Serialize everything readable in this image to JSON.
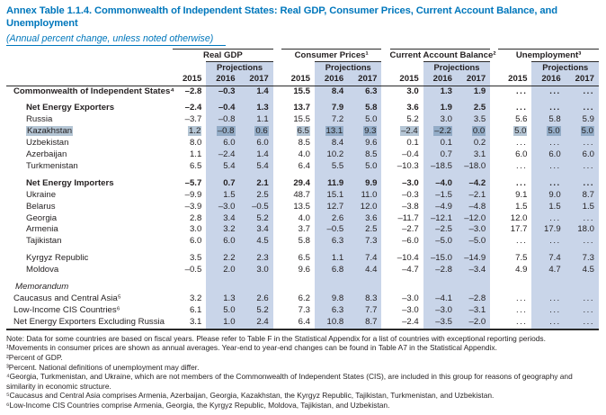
{
  "title": "Annex Table 1.1.4. Commonwealth of Independent States: Real GDP, Consumer Prices, Current Account Balance, and Unemployment",
  "subtitle": "(Annual percent change, unless noted otherwise)",
  "colors": {
    "accent_blue": "#0077bc",
    "projection_band": "#c9d5e9",
    "selection_highlight": "rgba(61,105,145,0.38)",
    "rule": "#2a2a2a"
  },
  "header": {
    "groups": [
      {
        "label": "Real GDP"
      },
      {
        "label": "Consumer Prices¹"
      },
      {
        "label": "Current Account Balance²"
      },
      {
        "label": "Unemployment³"
      }
    ],
    "projections_label": "Projections",
    "years": [
      "2015",
      "2016",
      "2017"
    ]
  },
  "table": {
    "rows": [
      {
        "label": "Commonwealth of Independent States⁴",
        "indent": 0,
        "style": "bold",
        "highlight": false,
        "spacer_before": false,
        "values": [
          "–2.8",
          "–0.3",
          "1.4",
          "15.5",
          "8.4",
          "6.3",
          "3.0",
          "1.3",
          "1.9",
          "...",
          "...",
          "..."
        ]
      },
      {
        "label": "Net Energy Exporters",
        "indent": 1,
        "style": "bold",
        "highlight": false,
        "spacer_before": true,
        "values": [
          "–2.4",
          "–0.4",
          "1.3",
          "13.7",
          "7.9",
          "5.8",
          "3.6",
          "1.9",
          "2.5",
          "...",
          "...",
          "..."
        ]
      },
      {
        "label": "Russia",
        "indent": 1,
        "style": "normal",
        "highlight": false,
        "spacer_before": false,
        "values": [
          "–3.7",
          "–0.8",
          "1.1",
          "15.5",
          "7.2",
          "5.0",
          "5.2",
          "3.0",
          "3.5",
          "5.6",
          "5.8",
          "5.9"
        ]
      },
      {
        "label": "Kazakhstan",
        "indent": 1,
        "style": "normal",
        "highlight": true,
        "spacer_before": false,
        "values": [
          "1.2",
          "–0.8",
          "0.6",
          "6.5",
          "13.1",
          "9.3",
          "–2.4",
          "–2.2",
          "0.0",
          "5.0",
          "5.0",
          "5.0"
        ]
      },
      {
        "label": "Uzbekistan",
        "indent": 1,
        "style": "normal",
        "highlight": false,
        "spacer_before": false,
        "values": [
          "8.0",
          "6.0",
          "6.0",
          "8.5",
          "8.4",
          "9.6",
          "0.1",
          "0.1",
          "0.2",
          "...",
          "...",
          "..."
        ]
      },
      {
        "label": "Azerbaijan",
        "indent": 1,
        "style": "normal",
        "highlight": false,
        "spacer_before": false,
        "values": [
          "1.1",
          "–2.4",
          "1.4",
          "4.0",
          "10.2",
          "8.5",
          "–0.4",
          "0.7",
          "3.1",
          "6.0",
          "6.0",
          "6.0"
        ]
      },
      {
        "label": "Turkmenistan",
        "indent": 1,
        "style": "normal",
        "highlight": false,
        "spacer_before": false,
        "values": [
          "6.5",
          "5.4",
          "5.4",
          "6.4",
          "5.5",
          "5.0",
          "–10.3",
          "–18.5",
          "–18.0",
          "...",
          "...",
          "..."
        ]
      },
      {
        "label": "Net Energy Importers",
        "indent": 1,
        "style": "bold",
        "highlight": false,
        "spacer_before": true,
        "values": [
          "–5.7",
          "0.7",
          "2.1",
          "29.4",
          "11.9",
          "9.9",
          "–3.0",
          "–4.0",
          "–4.2",
          "...",
          "...",
          "..."
        ]
      },
      {
        "label": "Ukraine",
        "indent": 1,
        "style": "normal",
        "highlight": false,
        "spacer_before": false,
        "values": [
          "–9.9",
          "1.5",
          "2.5",
          "48.7",
          "15.1",
          "11.0",
          "–0.3",
          "–1.5",
          "–2.1",
          "9.1",
          "9.0",
          "8.7"
        ]
      },
      {
        "label": "Belarus",
        "indent": 1,
        "style": "normal",
        "highlight": false,
        "spacer_before": false,
        "values": [
          "–3.9",
          "–3.0",
          "–0.5",
          "13.5",
          "12.7",
          "12.0",
          "–3.8",
          "–4.9",
          "–4.8",
          "1.5",
          "1.5",
          "1.5"
        ]
      },
      {
        "label": "Georgia",
        "indent": 1,
        "style": "normal",
        "highlight": false,
        "spacer_before": false,
        "values": [
          "2.8",
          "3.4",
          "5.2",
          "4.0",
          "2.6",
          "3.6",
          "–11.7",
          "–12.1",
          "–12.0",
          "12.0",
          "...",
          "..."
        ]
      },
      {
        "label": "Armenia",
        "indent": 1,
        "style": "normal",
        "highlight": false,
        "spacer_before": false,
        "values": [
          "3.0",
          "3.2",
          "3.4",
          "3.7",
          "–0.5",
          "2.5",
          "–2.7",
          "–2.5",
          "–3.0",
          "17.7",
          "17.9",
          "18.0"
        ]
      },
      {
        "label": "Tajikistan",
        "indent": 1,
        "style": "normal",
        "highlight": false,
        "spacer_before": false,
        "values": [
          "6.0",
          "6.0",
          "4.5",
          "5.8",
          "6.3",
          "7.3",
          "–6.0",
          "–5.0",
          "–5.0",
          "...",
          "...",
          "..."
        ]
      },
      {
        "label": "Kyrgyz Republic",
        "indent": 1,
        "style": "normal",
        "highlight": false,
        "spacer_before": true,
        "values": [
          "3.5",
          "2.2",
          "2.3",
          "6.5",
          "1.1",
          "7.4",
          "–10.4",
          "–15.0",
          "–14.9",
          "7.5",
          "7.4",
          "7.3"
        ]
      },
      {
        "label": "Moldova",
        "indent": 1,
        "style": "normal",
        "highlight": false,
        "spacer_before": false,
        "values": [
          "–0.5",
          "2.0",
          "3.0",
          "9.6",
          "6.8",
          "4.4",
          "–4.7",
          "–2.8",
          "–3.4",
          "4.9",
          "4.7",
          "4.5"
        ]
      },
      {
        "label": "Memorandum",
        "indent": 0,
        "style": "italic",
        "highlight": false,
        "spacer_before": true,
        "values": [
          "",
          "",
          "",
          "",
          "",
          "",
          "",
          "",
          "",
          "",
          "",
          ""
        ]
      },
      {
        "label": "Caucasus and Central Asia⁵",
        "indent": 0,
        "style": "normal",
        "highlight": false,
        "spacer_before": false,
        "values": [
          "3.2",
          "1.3",
          "2.6",
          "6.2",
          "9.8",
          "8.3",
          "–3.0",
          "–4.1",
          "–2.8",
          "...",
          "...",
          "..."
        ]
      },
      {
        "label": "Low-Income CIS Countries⁶",
        "indent": 0,
        "style": "normal",
        "highlight": false,
        "spacer_before": false,
        "values": [
          "6.1",
          "5.0",
          "5.2",
          "7.3",
          "6.3",
          "7.7",
          "–3.0",
          "–3.0",
          "–3.1",
          "...",
          "...",
          "..."
        ]
      },
      {
        "label": "Net Energy Exporters Excluding Russia",
        "indent": 0,
        "style": "normal",
        "highlight": false,
        "spacer_before": false,
        "values": [
          "3.1",
          "1.0",
          "2.4",
          "6.4",
          "10.8",
          "8.7",
          "–2.4",
          "–3.5",
          "–2.0",
          "...",
          "...",
          "..."
        ]
      }
    ]
  },
  "footnotes": [
    "Note: Data for some countries are based on fiscal years. Please refer to Table F in the Statistical Appendix for a list of countries with exceptional reporting periods.",
    "¹Movements in consumer prices are shown as annual averages. Year-end to year-end changes can be found in Table A7 in the Statistical Appendix.",
    "²Percent of GDP.",
    "³Percent. National definitions of unemployment may differ.",
    "⁴Georgia, Turkmenistan, and Ukraine, which are not members of the Commonwealth of Independent States (CIS), are included in this group for reasons of geography and similarity in economic structure.",
    "⁵Caucasus and Central Asia comprises Armenia, Azerbaijan, Georgia, Kazakhstan, the Kyrgyz Republic, Tajikistan, Turkmenistan, and Uzbekistan.",
    "⁶Low-Income CIS Countries comprise Armenia, Georgia, the Kyrgyz Republic, Moldova, Tajikistan, and Uzbekistan."
  ]
}
